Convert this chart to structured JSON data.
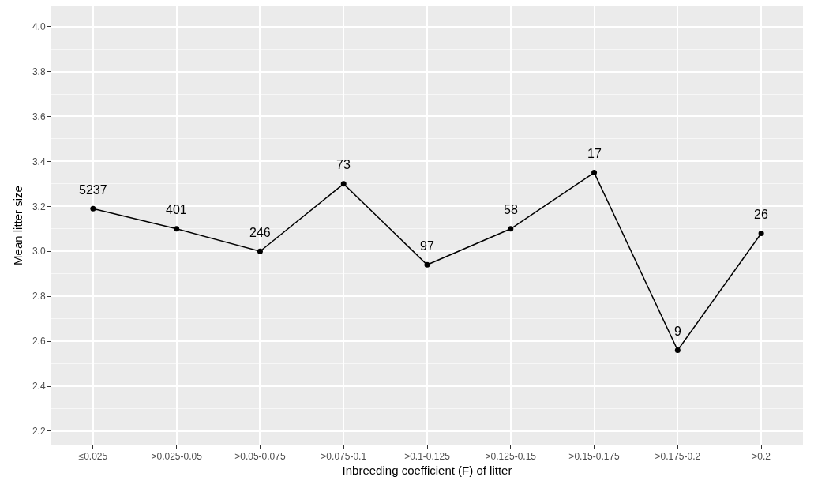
{
  "chart_data": {
    "type": "line",
    "xlabel": "Inbreeding coefficient (F) of litter",
    "ylabel": "Mean litter size",
    "categories": [
      "≤0.025",
      ">0.025-0.05",
      ">0.05-0.075",
      ">0.075-0.1",
      ">0.1-0.125",
      ">0.125-0.15",
      ">0.15-0.175",
      ">0.175-0.2",
      ">0.2"
    ],
    "values": [
      3.19,
      3.1,
      3.0,
      3.3,
      2.94,
      3.1,
      3.35,
      2.56,
      3.08
    ],
    "color": "#000000",
    "marker": "circle",
    "line_style": "solid",
    "grid": true,
    "ylim": [
      2.14,
      4.09
    ],
    "yticks": [
      {
        "value": 2.2,
        "label": "2.2"
      },
      {
        "value": 2.4,
        "label": "2.4"
      },
      {
        "value": 2.6,
        "label": "2.6"
      },
      {
        "value": 2.8,
        "label": "2.8"
      },
      {
        "value": 3.0,
        "label": "3.0"
      },
      {
        "value": 3.2,
        "label": "3.2"
      },
      {
        "value": 3.4,
        "label": "3.4"
      },
      {
        "value": 3.6,
        "label": "3.6"
      },
      {
        "value": 3.8,
        "label": "3.8"
      },
      {
        "value": 4.0,
        "label": "4.0"
      }
    ],
    "annotations": [
      {
        "text": "5237",
        "x": "≤0.025",
        "y": 3.19
      },
      {
        "text": "401",
        "x": ">0.025-0.05",
        "y": 3.1
      },
      {
        "text": "246",
        "x": ">0.05-0.075",
        "y": 3.0
      },
      {
        "text": "73",
        "x": ">0.075-0.1",
        "y": 3.3
      },
      {
        "text": "97",
        "x": ">0.1-0.125",
        "y": 2.94
      },
      {
        "text": "58",
        "x": ">0.125-0.15",
        "y": 3.1
      },
      {
        "text": "17",
        "x": ">0.15-0.175",
        "y": 3.35
      },
      {
        "text": "9",
        "x": ">0.175-0.2",
        "y": 2.56
      },
      {
        "text": "26",
        "x": ">0.2",
        "y": 3.08
      }
    ]
  }
}
